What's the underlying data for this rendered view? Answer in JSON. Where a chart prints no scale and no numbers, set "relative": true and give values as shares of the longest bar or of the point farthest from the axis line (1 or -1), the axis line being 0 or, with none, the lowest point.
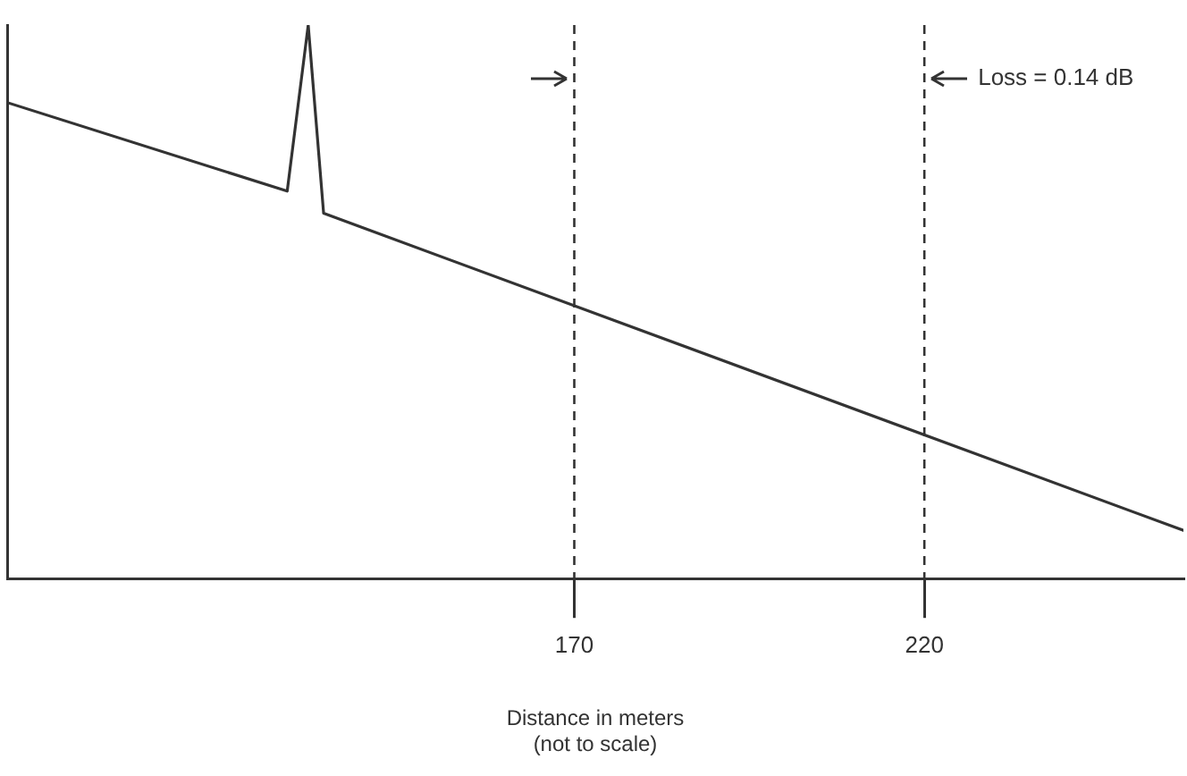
{
  "chart_data": {
    "type": "line",
    "relative": true,
    "xlabel": "Distance in meters\n(not to scale)",
    "x": [
      89,
      129,
      132,
      134.2,
      257
    ],
    "series": [
      {
        "color": "#333333",
        "values": [
          0.86,
          0.7,
          1,
          0.66,
          0.087
        ]
      }
    ],
    "xlim": [
      89,
      257
    ],
    "xticks": [
      170,
      220
    ],
    "ref_lines": [
      {
        "axis": "x",
        "value": 170,
        "line_style": "dashed",
        "color": "#333333"
      },
      {
        "axis": "x",
        "value": 220,
        "line_style": "dashed",
        "color": "#333333"
      }
    ],
    "annotations": [
      "Loss = 0.14 dB"
    ],
    "grid": false,
    "legend": false,
    "tick_labels": "x",
    "marker": "none",
    "line_style": "solid"
  }
}
